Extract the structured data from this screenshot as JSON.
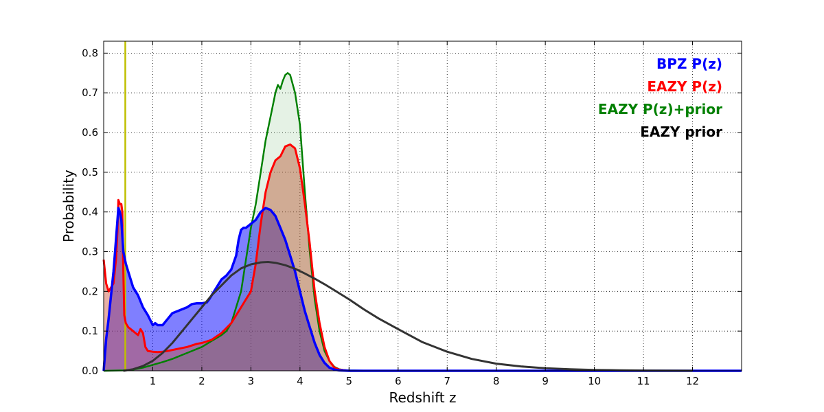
{
  "chart_data": {
    "type": "area",
    "xlabel": "Redshift z",
    "ylabel": "Probability",
    "xlim": [
      0,
      13
    ],
    "ylim": [
      0,
      0.83
    ],
    "grid": true,
    "legend_placement": "top-right",
    "x_ticks": [
      1,
      2,
      3,
      4,
      5,
      6,
      7,
      8,
      9,
      10,
      11,
      12
    ],
    "y_ticks": [
      "0.0",
      "0.1",
      "0.2",
      "0.3",
      "0.4",
      "0.5",
      "0.6",
      "0.7",
      "0.8"
    ],
    "vertical_line": {
      "x": 0.44,
      "color": "#bfbf00"
    },
    "series": [
      {
        "name": "BPZ P(z)",
        "color": "#0000ff",
        "fill": "rgba(0,0,255,0.5)",
        "fill_under": true,
        "x": [
          0,
          0.05,
          0.1,
          0.2,
          0.25,
          0.3,
          0.33,
          0.36,
          0.4,
          0.45,
          0.5,
          0.55,
          0.6,
          0.7,
          0.8,
          0.9,
          1.0,
          1.05,
          1.1,
          1.2,
          1.3,
          1.4,
          1.5,
          1.6,
          1.7,
          1.8,
          1.9,
          2.0,
          2.1,
          2.15,
          2.2,
          2.3,
          2.4,
          2.5,
          2.6,
          2.7,
          2.75,
          2.8,
          2.85,
          2.9,
          3.0,
          3.1,
          3.2,
          3.3,
          3.4,
          3.5,
          3.6,
          3.7,
          3.8,
          3.9,
          4.0,
          4.1,
          4.2,
          4.3,
          4.4,
          4.5,
          4.6,
          4.7,
          4.8,
          5.0,
          5.5,
          13
        ],
        "y": [
          0.0,
          0.08,
          0.13,
          0.25,
          0.33,
          0.41,
          0.4,
          0.38,
          0.3,
          0.27,
          0.25,
          0.23,
          0.21,
          0.19,
          0.16,
          0.14,
          0.115,
          0.12,
          0.115,
          0.115,
          0.13,
          0.145,
          0.15,
          0.155,
          0.16,
          0.168,
          0.17,
          0.17,
          0.172,
          0.18,
          0.19,
          0.21,
          0.23,
          0.24,
          0.255,
          0.29,
          0.33,
          0.355,
          0.36,
          0.36,
          0.37,
          0.38,
          0.4,
          0.41,
          0.405,
          0.39,
          0.36,
          0.33,
          0.29,
          0.25,
          0.2,
          0.15,
          0.11,
          0.07,
          0.04,
          0.02,
          0.008,
          0.003,
          0.001,
          0.0,
          0.0,
          0.0
        ]
      },
      {
        "name": "EAZY P(z)",
        "color": "#ff0000",
        "fill": "rgba(205,80,55,0.45)",
        "fill_under": true,
        "x": [
          0,
          0.05,
          0.1,
          0.15,
          0.2,
          0.25,
          0.28,
          0.3,
          0.33,
          0.36,
          0.38,
          0.4,
          0.42,
          0.45,
          0.5,
          0.6,
          0.7,
          0.75,
          0.8,
          0.85,
          0.9,
          1.0,
          1.1,
          1.2,
          1.3,
          1.5,
          1.7,
          1.9,
          2.0,
          2.2,
          2.4,
          2.6,
          2.8,
          2.9,
          3.0,
          3.1,
          3.2,
          3.3,
          3.4,
          3.5,
          3.55,
          3.6,
          3.7,
          3.8,
          3.9,
          4.0,
          4.1,
          4.2,
          4.3,
          4.4,
          4.5,
          4.6,
          4.7,
          4.8,
          5.0,
          5.5,
          13
        ],
        "y": [
          0.28,
          0.22,
          0.2,
          0.21,
          0.22,
          0.28,
          0.35,
          0.43,
          0.42,
          0.42,
          0.4,
          0.25,
          0.14,
          0.12,
          0.11,
          0.1,
          0.09,
          0.105,
          0.095,
          0.06,
          0.05,
          0.048,
          0.047,
          0.048,
          0.05,
          0.055,
          0.06,
          0.068,
          0.07,
          0.078,
          0.095,
          0.12,
          0.16,
          0.18,
          0.2,
          0.27,
          0.37,
          0.45,
          0.5,
          0.53,
          0.535,
          0.54,
          0.565,
          0.57,
          0.56,
          0.51,
          0.42,
          0.32,
          0.2,
          0.12,
          0.06,
          0.025,
          0.008,
          0.003,
          0.0,
          0.0,
          0.0
        ]
      },
      {
        "name": "EAZY P(z)+prior",
        "color": "#008000",
        "fill": "rgba(0,128,0,0.1)",
        "fill_under": true,
        "x": [
          0,
          0.4,
          0.6,
          0.8,
          1.0,
          1.2,
          1.4,
          1.6,
          1.8,
          2.0,
          2.2,
          2.4,
          2.5,
          2.6,
          2.7,
          2.8,
          2.9,
          3.0,
          3.1,
          3.2,
          3.3,
          3.4,
          3.5,
          3.55,
          3.6,
          3.65,
          3.7,
          3.75,
          3.8,
          3.9,
          4.0,
          4.1,
          4.2,
          4.3,
          4.4,
          4.5,
          4.6,
          4.7,
          4.8,
          4.9,
          5.0,
          5.5,
          12,
          13
        ],
        "y": [
          0.0,
          0.001,
          0.003,
          0.008,
          0.015,
          0.022,
          0.03,
          0.04,
          0.05,
          0.06,
          0.075,
          0.09,
          0.1,
          0.12,
          0.16,
          0.2,
          0.28,
          0.36,
          0.42,
          0.5,
          0.58,
          0.64,
          0.7,
          0.72,
          0.71,
          0.73,
          0.745,
          0.75,
          0.745,
          0.7,
          0.62,
          0.45,
          0.3,
          0.18,
          0.1,
          0.05,
          0.025,
          0.01,
          0.004,
          0.002,
          0.001,
          0.0,
          0.0,
          0.0
        ]
      },
      {
        "name": "EAZY prior",
        "color": "#333333",
        "fill_under": false,
        "x": [
          0.4,
          0.6,
          0.8,
          1.0,
          1.2,
          1.4,
          1.6,
          1.8,
          2.0,
          2.2,
          2.4,
          2.6,
          2.8,
          3.0,
          3.2,
          3.35,
          3.5,
          3.7,
          3.9,
          4.1,
          4.3,
          4.5,
          4.7,
          5.0,
          5.3,
          5.6,
          6.0,
          6.5,
          7.0,
          7.5,
          8.0,
          8.5,
          9.0,
          9.5,
          10.0,
          10.5,
          11.0,
          11.5,
          12.0
        ],
        "y": [
          0.0,
          0.004,
          0.012,
          0.025,
          0.045,
          0.07,
          0.1,
          0.13,
          0.16,
          0.19,
          0.215,
          0.24,
          0.258,
          0.268,
          0.273,
          0.274,
          0.272,
          0.266,
          0.257,
          0.245,
          0.232,
          0.218,
          0.203,
          0.18,
          0.155,
          0.132,
          0.105,
          0.072,
          0.048,
          0.03,
          0.018,
          0.011,
          0.0065,
          0.004,
          0.0023,
          0.0013,
          0.0007,
          0.0004,
          0.0002
        ]
      }
    ],
    "legend": [
      {
        "label": "BPZ P(z)",
        "color": "#0000ff"
      },
      {
        "label": "EAZY P(z)",
        "color": "#ff0000"
      },
      {
        "label": "EAZY P(z)+prior",
        "color": "#008000"
      },
      {
        "label": "EAZY prior",
        "color": "#000000"
      }
    ]
  }
}
